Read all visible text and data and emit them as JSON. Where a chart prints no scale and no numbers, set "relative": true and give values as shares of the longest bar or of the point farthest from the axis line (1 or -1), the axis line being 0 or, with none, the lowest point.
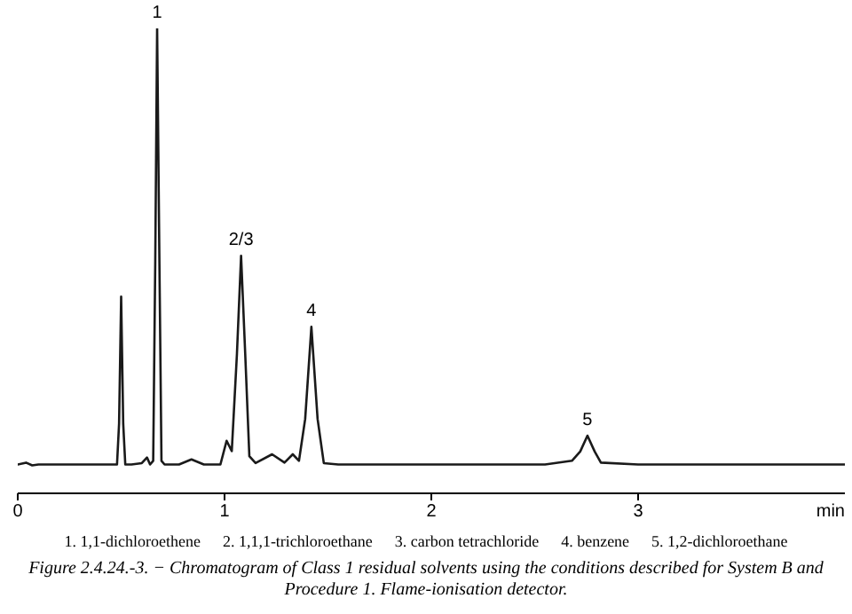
{
  "chart_data": {
    "type": "line",
    "relative": true,
    "xlabel": "min",
    "xlim": [
      0,
      4
    ],
    "xticks": [
      0,
      1,
      2,
      3
    ],
    "marker": "none",
    "line_style": "solid",
    "grid": false,
    "legend": false,
    "series": [
      {
        "color": "#1a1a1a",
        "x": [
          0,
          0.04,
          0.07,
          0.1,
          0.3,
          0.48,
          0.49,
          0.5,
          0.51,
          0.52,
          0.55,
          0.6,
          0.625,
          0.64,
          0.655,
          0.665,
          0.674,
          0.685,
          0.695,
          0.71,
          0.78,
          0.84,
          0.9,
          0.98,
          1.01,
          1.035,
          1.06,
          1.08,
          1.1,
          1.12,
          1.15,
          1.23,
          1.29,
          1.33,
          1.36,
          1.39,
          1.42,
          1.45,
          1.48,
          1.55,
          2.55,
          2.68,
          2.72,
          2.755,
          2.79,
          2.82,
          3.0,
          4.0
        ],
        "values": [
          0.062,
          0.066,
          0.06,
          0.062,
          0.062,
          0.062,
          0.15,
          0.423,
          0.15,
          0.062,
          0.062,
          0.065,
          0.077,
          0.062,
          0.07,
          0.5,
          1,
          0.5,
          0.07,
          0.062,
          0.062,
          0.073,
          0.062,
          0.062,
          0.113,
          0.091,
          0.3,
          0.511,
          0.3,
          0.08,
          0.065,
          0.084,
          0.066,
          0.084,
          0.07,
          0.16,
          0.358,
          0.16,
          0.065,
          0.062,
          0.062,
          0.07,
          0.09,
          0.124,
          0.09,
          0.066,
          0.062,
          0.062
        ]
      }
    ],
    "annotations": [
      {
        "text": "1",
        "x": 0.674,
        "y": 1
      },
      {
        "text": "2/3",
        "x": 1.08,
        "y": 0.511
      },
      {
        "text": "4",
        "x": 1.42,
        "y": 0.358
      },
      {
        "text": "5",
        "x": 2.755,
        "y": 0.124
      },
      "1. 1,1-dichloroethene",
      "2. 1,1,1-trichloroethane",
      "3. carbon tetrachloride",
      "4. benzene",
      "5. 1,2-dichloroethane",
      "Figure 2.4.24.-3. − Chromatogram of Class 1 residual solvents using the conditions described for System B and Procedure 1. Flame-ionisation detector."
    ]
  }
}
